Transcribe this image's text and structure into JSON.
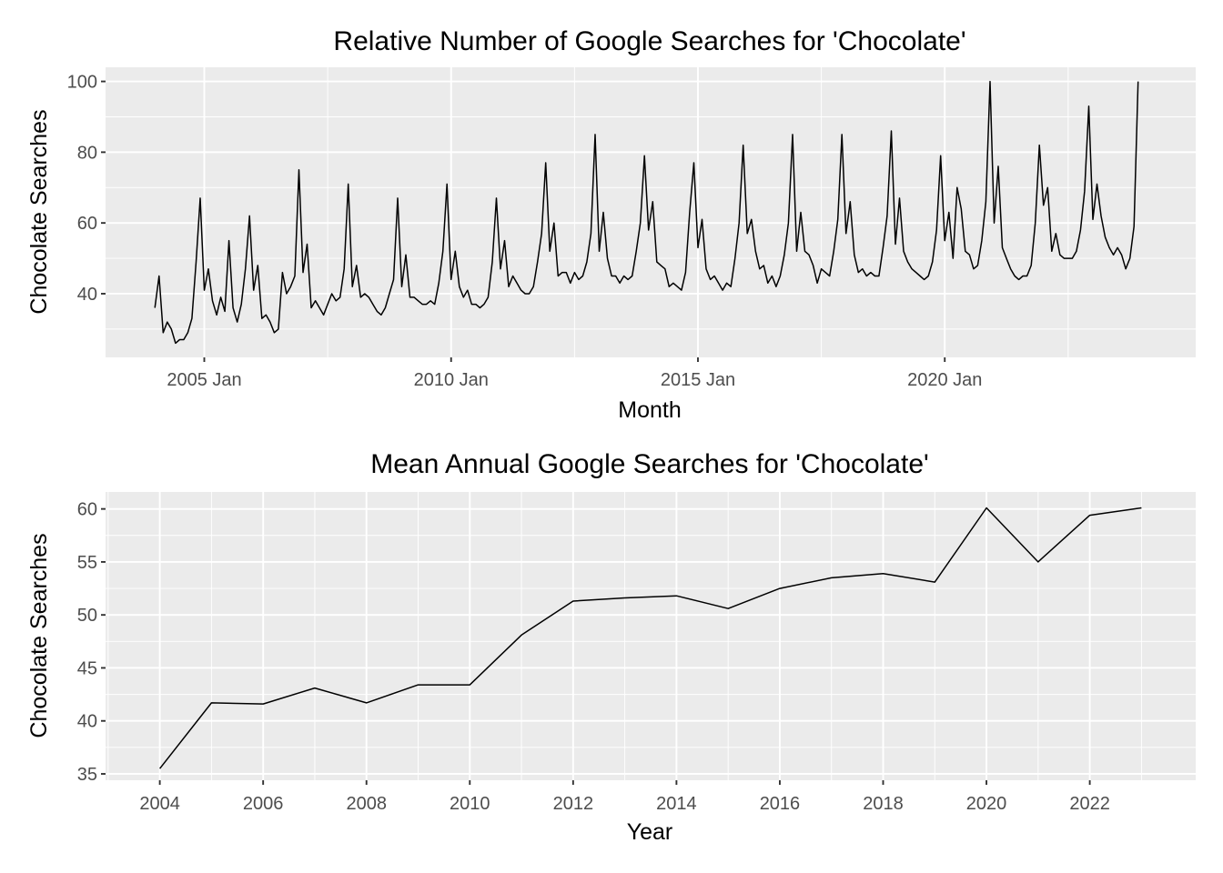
{
  "chart_data": [
    {
      "type": "line",
      "title": "Relative Number of Google Searches for 'Chocolate'",
      "xlabel": "Month",
      "ylabel": "Chocolate Searches",
      "x_tick_labels": [
        "2005 Jan",
        "2010 Jan",
        "2015 Jan",
        "2020 Jan"
      ],
      "y_ticks": [
        40,
        60,
        80,
        100
      ],
      "ylim": [
        22,
        104
      ],
      "xlim": [
        "2003-01",
        "2025-02"
      ],
      "grid": true,
      "x_start": "2004-01",
      "series": [
        {
          "values": [
            36,
            45,
            29,
            32,
            30,
            26,
            27,
            27,
            29,
            33,
            49,
            67,
            41,
            47,
            38,
            34,
            39,
            35,
            55,
            36,
            32,
            37,
            47,
            62,
            41,
            48,
            33,
            34,
            32,
            29,
            30,
            46,
            40,
            42,
            45,
            75,
            46,
            54,
            36,
            38,
            36,
            34,
            37,
            40,
            38,
            39,
            47,
            71,
            42,
            48,
            39,
            40,
            39,
            37,
            35,
            34,
            36,
            40,
            44,
            67,
            42,
            51,
            39,
            39,
            38,
            37,
            37,
            38,
            37,
            43,
            52,
            71,
            44,
            52,
            42,
            39,
            41,
            37,
            37,
            36,
            37,
            39,
            49,
            67,
            47,
            55,
            42,
            45,
            43,
            41,
            40,
            40,
            42,
            49,
            57,
            77,
            52,
            60,
            45,
            46,
            46,
            43,
            46,
            44,
            45,
            49,
            57,
            85,
            52,
            63,
            50,
            45,
            45,
            43,
            45,
            44,
            45,
            52,
            60,
            79,
            58,
            66,
            49,
            48,
            47,
            42,
            43,
            42,
            41,
            46,
            63,
            77,
            53,
            61,
            47,
            44,
            45,
            43,
            41,
            43,
            42,
            50,
            60,
            82,
            57,
            61,
            52,
            47,
            48,
            43,
            45,
            42,
            45,
            51,
            60,
            85,
            52,
            63,
            52,
            51,
            48,
            43,
            47,
            46,
            45,
            52,
            61,
            85,
            57,
            66,
            51,
            46,
            47,
            45,
            46,
            45,
            45,
            53,
            62,
            86,
            54,
            67,
            52,
            49,
            47,
            46,
            45,
            44,
            45,
            49,
            58,
            79,
            55,
            63,
            50,
            70,
            64,
            52,
            51,
            47,
            48,
            55,
            66,
            100,
            60,
            76,
            53,
            50,
            47,
            45,
            44,
            45,
            45,
            48,
            60,
            82,
            65,
            70,
            52,
            57,
            51,
            50,
            50,
            50,
            52,
            58,
            69,
            93,
            61,
            71,
            62,
            56,
            53,
            51,
            53,
            51,
            47,
            50,
            59,
            100
          ]
        }
      ]
    },
    {
      "type": "line",
      "title": "Mean Annual Google Searches for 'Chocolate'",
      "xlabel": "Year",
      "ylabel": "Chocolate Searches",
      "x_tick_labels": [
        "2004",
        "2006",
        "2008",
        "2010",
        "2012",
        "2014",
        "2016",
        "2018",
        "2020",
        "2022"
      ],
      "y_ticks": [
        35,
        40,
        45,
        50,
        55,
        60
      ],
      "ylim": [
        34.4,
        61.6
      ],
      "xlim": [
        2002.95,
        2024.05
      ],
      "grid": true,
      "x": [
        2004,
        2005,
        2006,
        2007,
        2008,
        2009,
        2010,
        2011,
        2012,
        2013,
        2014,
        2015,
        2016,
        2017,
        2018,
        2019,
        2020,
        2021,
        2022,
        2023
      ],
      "series": [
        {
          "values": [
            35.5,
            41.7,
            41.6,
            43.1,
            41.7,
            43.4,
            43.4,
            48.1,
            51.3,
            51.6,
            51.8,
            50.6,
            52.5,
            53.5,
            53.9,
            53.1,
            60.1,
            55.0,
            59.4,
            60.1
          ]
        }
      ]
    }
  ]
}
